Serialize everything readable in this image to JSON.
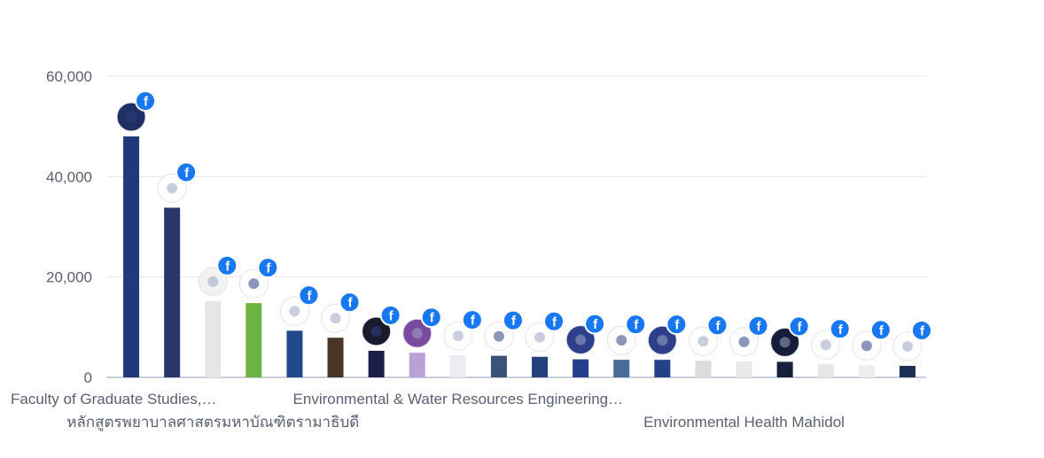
{
  "chart_data": {
    "type": "bar",
    "title": "",
    "xlabel": "",
    "ylabel": "",
    "ylim": [
      0,
      60000
    ],
    "y_ticks": [
      0,
      20000,
      40000,
      60000
    ],
    "y_tick_labels": [
      "0",
      "20,000",
      "40,000",
      "60,000"
    ],
    "grid": true,
    "legend": "none",
    "badge_icon": "facebook-icon",
    "badge_color": "#1877f2",
    "categories": [
      "Faculty of Graduate Studies,…",
      "",
      "หลักสูตรพยาบาลศาสตรมหาบัณฑิตรามาธิบดี",
      "",
      "",
      "",
      "",
      "",
      "Environmental & Water Resources Engineering…",
      "",
      "",
      "",
      "",
      "",
      "",
      "Environmental Health Mahidol",
      "",
      "",
      "",
      ""
    ],
    "label_rows": [
      0,
      0,
      1,
      0,
      0,
      0,
      0,
      0,
      0,
      0,
      0,
      0,
      0,
      0,
      0,
      1,
      0,
      0,
      0,
      0
    ],
    "values": [
      48000,
      33800,
      15200,
      14800,
      9300,
      7900,
      5300,
      4900,
      4400,
      4300,
      4100,
      3600,
      3500,
      3500,
      3300,
      3200,
      3100,
      2600,
      2400,
      2300
    ],
    "colors": [
      "#1f3a7a",
      "#27366b",
      "#e6e6e6",
      "#6db33f",
      "#1e4a8c",
      "#4a3528",
      "#1c1f4a",
      "#b9a0d6",
      "#ececf2",
      "#3b5278",
      "#23417d",
      "#253f8e",
      "#4a6a9a",
      "#25408a",
      "#dcdcdc",
      "#e9e9e9",
      "#16213e",
      "#e6e6e6",
      "#eeeeee",
      "#1e2f55"
    ],
    "logo_colors": [
      "#1f2f63",
      "#ffffff",
      "#f2f2f2",
      "#ffffff",
      "#ffffff",
      "#ffffff",
      "#1b1b2e",
      "#7a4aa0",
      "#ffffff",
      "#ffffff",
      "#ffffff",
      "#2d3f8a",
      "#ffffff",
      "#2d3f8a",
      "#ffffff",
      "#ffffff",
      "#151d3a",
      "#ffffff",
      "#ffffff",
      "#ffffff"
    ]
  }
}
